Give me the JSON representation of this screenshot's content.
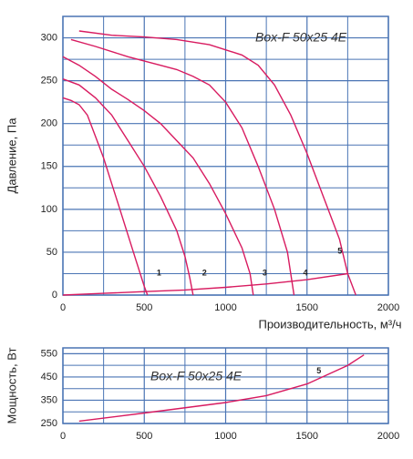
{
  "chart_data": [
    {
      "type": "line",
      "title": "Box-F 50x25 4E",
      "x_label": "Производительность, м³/ч",
      "y_label": "Давление, Па",
      "xlim": [
        0,
        2000
      ],
      "xticks": [
        0,
        500,
        1000,
        1500,
        2000
      ],
      "ylim": [
        0,
        325
      ],
      "yticks": [
        0,
        50,
        100,
        150,
        200,
        250,
        300
      ],
      "grid": true,
      "color": "#d81b60",
      "series": [
        {
          "name": "1",
          "x": [
            0,
            50,
            100,
            150,
            200,
            250,
            300,
            350,
            400,
            450,
            500,
            520
          ],
          "values": [
            230,
            227,
            222,
            210,
            185,
            160,
            130,
            100,
            70,
            40,
            10,
            0
          ]
        },
        {
          "name": "2",
          "x": [
            0,
            100,
            200,
            300,
            400,
            500,
            600,
            700,
            750,
            780,
            800
          ],
          "values": [
            252,
            245,
            230,
            210,
            180,
            150,
            115,
            75,
            45,
            20,
            0
          ]
        },
        {
          "name": "3",
          "x": [
            0,
            100,
            200,
            300,
            400,
            500,
            600,
            700,
            800,
            900,
            1000,
            1100,
            1150,
            1170
          ],
          "values": [
            278,
            268,
            255,
            240,
            228,
            215,
            200,
            180,
            160,
            130,
            95,
            55,
            25,
            0
          ]
        },
        {
          "name": "4",
          "x": [
            50,
            200,
            400,
            600,
            700,
            800,
            900,
            1000,
            1100,
            1200,
            1300,
            1380,
            1400,
            1420
          ],
          "values": [
            298,
            290,
            278,
            268,
            263,
            255,
            245,
            225,
            195,
            150,
            100,
            50,
            25,
            0
          ]
        },
        {
          "name": "5",
          "x": [
            100,
            300,
            500,
            700,
            900,
            1100,
            1200,
            1300,
            1400,
            1500,
            1600,
            1700,
            1750,
            1800
          ],
          "values": [
            308,
            303,
            301,
            298,
            292,
            280,
            268,
            245,
            210,
            165,
            115,
            65,
            25,
            0
          ]
        },
        {
          "x": [
            0,
            250,
            500,
            750,
            1000,
            1250,
            1500,
            1750
          ],
          "values": [
            0,
            2,
            4,
            6,
            9,
            13,
            18,
            25
          ]
        }
      ]
    },
    {
      "type": "line",
      "title": "Box-F 50x25 4E",
      "y_label": "Мощность, Вт",
      "xlim": [
        0,
        2000
      ],
      "xticks": [
        0,
        500,
        1000,
        1500,
        2000
      ],
      "ylim": [
        250,
        575
      ],
      "yticks": [
        250,
        350,
        450,
        550
      ],
      "grid": true,
      "color": "#d81b60",
      "series": [
        {
          "name": "5",
          "x": [
            100,
            500,
            1000,
            1250,
            1500,
            1750,
            1850
          ],
          "values": [
            260,
            295,
            340,
            370,
            420,
            500,
            545
          ]
        }
      ]
    }
  ]
}
